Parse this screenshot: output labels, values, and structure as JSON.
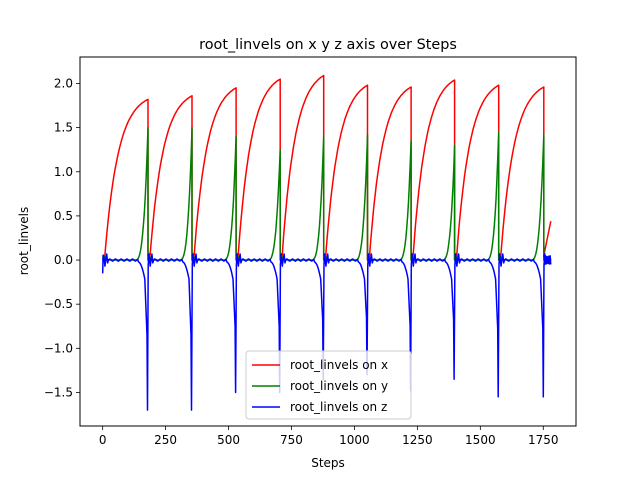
{
  "chart_data": {
    "type": "line",
    "title": "root_linvels on x y z axis over Steps",
    "xlabel": "Steps",
    "ylabel": "root_linvels",
    "xlim": [
      -90,
      1880
    ],
    "ylim": [
      -1.88,
      2.3
    ],
    "xticks": [
      0,
      250,
      500,
      750,
      1000,
      1250,
      1500,
      1750
    ],
    "xtick_labels": [
      "0",
      "250",
      "500",
      "750",
      "1000",
      "1250",
      "1500",
      "1750"
    ],
    "yticks": [
      -1.5,
      -1.0,
      -0.5,
      0.0,
      0.5,
      1.0,
      1.5,
      2.0
    ],
    "ytick_labels": [
      "−1.5",
      "−1.0",
      "−0.5",
      "0.0",
      "0.5",
      "1.0",
      "1.5",
      "2.0"
    ],
    "grid": false,
    "legend_position": "lower center",
    "cycle_starts": [
      0,
      180,
      355,
      530,
      705,
      878,
      1052,
      1225,
      1398,
      1573,
      1752
    ],
    "cycle_end": 1780,
    "series": [
      {
        "name": "root_linvels on x",
        "color": "#ff0000",
        "peaks": [
          1.82,
          1.86,
          1.95,
          2.05,
          2.09,
          1.98,
          1.96,
          2.04,
          1.98,
          1.96
        ],
        "end_value": 0.44
      },
      {
        "name": "root_linvels on y",
        "color": "#008000",
        "peaks": [
          1.5,
          1.5,
          1.4,
          1.25,
          1.4,
          1.42,
          1.35,
          1.3,
          1.45,
          1.42
        ]
      },
      {
        "name": "root_linvels on z",
        "color": "#0000ff",
        "troughs": [
          -1.7,
          -1.7,
          -1.5,
          -1.5,
          -1.35,
          -1.3,
          -1.48,
          -1.35,
          -1.55,
          -1.55
        ],
        "start_value": -0.15
      }
    ]
  }
}
